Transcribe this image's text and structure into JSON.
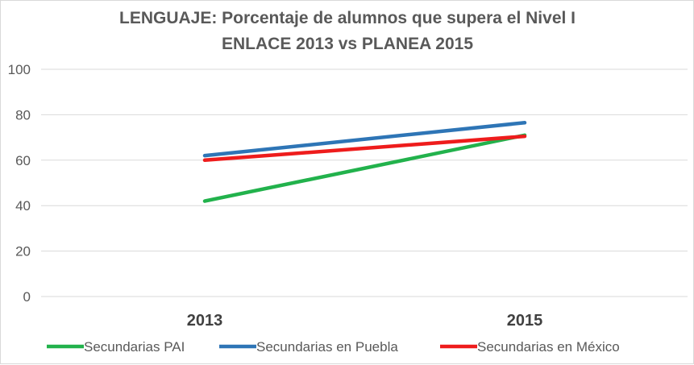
{
  "chart_data": {
    "type": "line",
    "title": "LENGUAJE: Porcentaje de alumnos que supera el Nivel I",
    "subtitle": "ENLACE 2013 vs PLANEA 2015",
    "categories": [
      "2013",
      "2015"
    ],
    "ylim": [
      0,
      100
    ],
    "yticks": [
      "0",
      "20",
      "40",
      "60",
      "80",
      "100"
    ],
    "ytick_values": [
      0,
      20,
      40,
      60,
      80,
      100
    ],
    "grid": true,
    "legend": "bottom",
    "xlabel": "",
    "ylabel": "",
    "series": [
      {
        "name": "Secundarias PAI",
        "values": [
          42,
          71
        ],
        "color": "#22b24c"
      },
      {
        "name": "Secundarias en Puebla",
        "values": [
          62,
          76.5
        ],
        "color": "#2e75b6"
      },
      {
        "name": "Secundarias en México",
        "values": [
          60,
          70.5
        ],
        "color": "#ee1c1c"
      }
    ]
  }
}
